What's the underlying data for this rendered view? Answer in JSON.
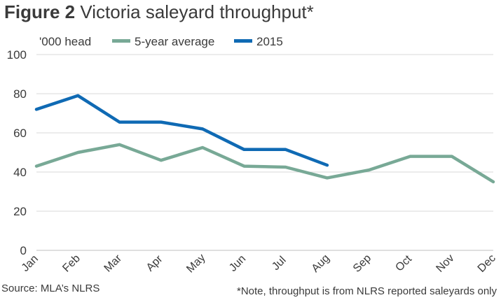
{
  "title": {
    "figure": "Figure 2",
    "text": "Victoria saleyard throughput*"
  },
  "source": "Source: MLA’s NLRS",
  "note": "*Note, throughput is from NLRS reported saleyards only",
  "chart_data": {
    "type": "line",
    "ylabel": "'000 head",
    "xlabel": "",
    "ylim": [
      0,
      100
    ],
    "yticks": [
      0,
      20,
      40,
      60,
      80,
      100
    ],
    "grid": true,
    "legend_position": "top",
    "categories": [
      "Jan",
      "Feb",
      "Mar",
      "Apr",
      "May",
      "Jun",
      "Jul",
      "Aug",
      "Sep",
      "Oct",
      "Nov",
      "Dec"
    ],
    "series": [
      {
        "name": "5-year average",
        "color": "#78a996",
        "values": [
          43,
          50,
          54,
          46,
          52.5,
          43,
          42.5,
          37,
          41,
          48,
          48,
          35
        ]
      },
      {
        "name": "2015",
        "color": "#0f6ab4",
        "values": [
          72,
          79,
          65.5,
          65.5,
          62,
          51.5,
          51.5,
          43.5,
          null,
          null,
          null,
          null
        ]
      }
    ]
  }
}
